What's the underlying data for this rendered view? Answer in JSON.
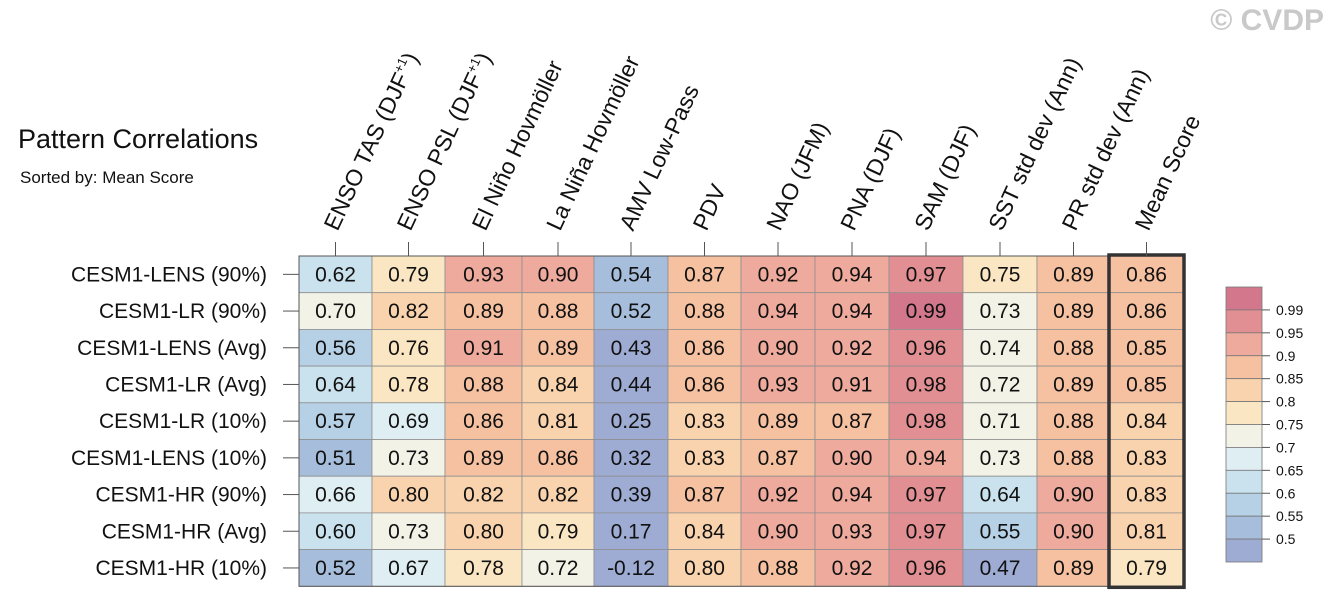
{
  "title": "Pattern Correlations",
  "subtitle": "Sorted by: Mean Score",
  "watermark": "© CVDP",
  "chart_data": {
    "type": "heatmap",
    "title": "Pattern Correlations",
    "subtitle": "Sorted by: Mean Score",
    "columns": [
      {
        "main": "ENSO TAS (DJF",
        "sup": "+1",
        "tail": ")"
      },
      {
        "main": "ENSO PSL (DJF",
        "sup": "+1",
        "tail": ")"
      },
      {
        "main": "El Niño Hovmöller",
        "sup": "",
        "tail": ""
      },
      {
        "main": "La Niña Hovmöller",
        "sup": "",
        "tail": ""
      },
      {
        "main": "AMV Low-Pass",
        "sup": "",
        "tail": ""
      },
      {
        "main": "PDV",
        "sup": "",
        "tail": ""
      },
      {
        "main": "NAO (JFM)",
        "sup": "",
        "tail": ""
      },
      {
        "main": "PNA (DJF)",
        "sup": "",
        "tail": ""
      },
      {
        "main": "SAM (DJF)",
        "sup": "",
        "tail": ""
      },
      {
        "main": "SST std dev (Ann)",
        "sup": "",
        "tail": ""
      },
      {
        "main": "PR std dev (Ann)",
        "sup": "",
        "tail": ""
      },
      {
        "main": "Mean Score",
        "sup": "",
        "tail": ""
      }
    ],
    "rows": [
      {
        "name": "CESM1-LENS (90%)",
        "values": [
          "0.62",
          "0.79",
          "0.93",
          "0.90",
          "0.54",
          "0.87",
          "0.92",
          "0.94",
          "0.97",
          "0.75",
          "0.89",
          "0.86"
        ]
      },
      {
        "name": "CESM1-LR (90%)",
        "values": [
          "0.70",
          "0.82",
          "0.89",
          "0.88",
          "0.52",
          "0.88",
          "0.94",
          "0.94",
          "0.99",
          "0.73",
          "0.89",
          "0.86"
        ]
      },
      {
        "name": "CESM1-LENS (Avg)",
        "values": [
          "0.56",
          "0.76",
          "0.91",
          "0.89",
          "0.43",
          "0.86",
          "0.90",
          "0.92",
          "0.96",
          "0.74",
          "0.88",
          "0.85"
        ]
      },
      {
        "name": "CESM1-LR (Avg)",
        "values": [
          "0.64",
          "0.78",
          "0.88",
          "0.84",
          "0.44",
          "0.86",
          "0.93",
          "0.91",
          "0.98",
          "0.72",
          "0.89",
          "0.85"
        ]
      },
      {
        "name": "CESM1-LR (10%)",
        "values": [
          "0.57",
          "0.69",
          "0.86",
          "0.81",
          "0.25",
          "0.83",
          "0.89",
          "0.87",
          "0.98",
          "0.71",
          "0.88",
          "0.84"
        ]
      },
      {
        "name": "CESM1-LENS (10%)",
        "values": [
          "0.51",
          "0.73",
          "0.89",
          "0.86",
          "0.32",
          "0.83",
          "0.87",
          "0.90",
          "0.94",
          "0.73",
          "0.88",
          "0.83"
        ]
      },
      {
        "name": "CESM1-HR (90%)",
        "values": [
          "0.66",
          "0.80",
          "0.82",
          "0.82",
          "0.39",
          "0.87",
          "0.92",
          "0.94",
          "0.97",
          "0.64",
          "0.90",
          "0.83"
        ]
      },
      {
        "name": "CESM1-HR (Avg)",
        "values": [
          "0.60",
          "0.73",
          "0.80",
          "0.79",
          "0.17",
          "0.84",
          "0.90",
          "0.93",
          "0.97",
          "0.55",
          "0.90",
          "0.81"
        ]
      },
      {
        "name": "CESM1-HR (10%)",
        "values": [
          "0.52",
          "0.67",
          "0.78",
          "0.72",
          "-0.12",
          "0.80",
          "0.88",
          "0.92",
          "0.96",
          "0.47",
          "0.89",
          "0.79"
        ]
      }
    ],
    "colorbar_ticks": [
      "0.99",
      "0.95",
      "0.9",
      "0.85",
      "0.8",
      "0.75",
      "0.7",
      "0.65",
      "0.6",
      "0.55",
      "0.5"
    ],
    "color_levels": [
      {
        "min": 0.99,
        "color": "#d3778c"
      },
      {
        "min": 0.95,
        "color": "#e28f93"
      },
      {
        "min": 0.9,
        "color": "#eeaa9c"
      },
      {
        "min": 0.85,
        "color": "#f6c1a1"
      },
      {
        "min": 0.8,
        "color": "#f9d3ad"
      },
      {
        "min": 0.75,
        "color": "#fbe6c3"
      },
      {
        "min": 0.7,
        "color": "#f3f2e6"
      },
      {
        "min": 0.65,
        "color": "#dfeef3"
      },
      {
        "min": 0.6,
        "color": "#cae2ed"
      },
      {
        "min": 0.55,
        "color": "#b6d0e5"
      },
      {
        "min": 0.5,
        "color": "#a6bddb"
      },
      {
        "min": -1.0,
        "color": "#9eacd4"
      }
    ],
    "highlighted_column": "Mean Score"
  }
}
